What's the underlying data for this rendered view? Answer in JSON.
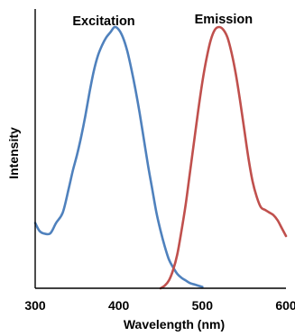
{
  "chart_data": {
    "type": "line",
    "xlabel": "Wavelength (nm)",
    "ylabel": "Intensity",
    "xlim": [
      300,
      600
    ],
    "ylim": [
      0,
      1
    ],
    "xticks": [
      "300",
      "400",
      "500",
      "600"
    ],
    "grid": false,
    "series": [
      {
        "name": "Excitation",
        "color": "#4f81bd",
        "points": [
          [
            300,
            0.25
          ],
          [
            305,
            0.22
          ],
          [
            310,
            0.21
          ],
          [
            318,
            0.21
          ],
          [
            325,
            0.25
          ],
          [
            333,
            0.29
          ],
          [
            340,
            0.38
          ],
          [
            345,
            0.45
          ],
          [
            350,
            0.51
          ],
          [
            355,
            0.58
          ],
          [
            360,
            0.66
          ],
          [
            365,
            0.75
          ],
          [
            370,
            0.83
          ],
          [
            375,
            0.89
          ],
          [
            380,
            0.93
          ],
          [
            385,
            0.96
          ],
          [
            390,
            0.98
          ],
          [
            395,
            1.0
          ],
          [
            400,
            0.99
          ],
          [
            405,
            0.96
          ],
          [
            410,
            0.91
          ],
          [
            415,
            0.84
          ],
          [
            420,
            0.76
          ],
          [
            425,
            0.67
          ],
          [
            430,
            0.57
          ],
          [
            435,
            0.47
          ],
          [
            440,
            0.38
          ],
          [
            445,
            0.29
          ],
          [
            450,
            0.22
          ],
          [
            455,
            0.16
          ],
          [
            460,
            0.11
          ],
          [
            465,
            0.08
          ],
          [
            470,
            0.055
          ],
          [
            475,
            0.04
          ],
          [
            480,
            0.03
          ],
          [
            485,
            0.02
          ],
          [
            490,
            0.015
          ],
          [
            495,
            0.01
          ],
          [
            500,
            0.005
          ]
        ]
      },
      {
        "name": "Emission",
        "color": "#c0504d",
        "points": [
          [
            450,
            0.0
          ],
          [
            455,
            0.01
          ],
          [
            460,
            0.03
          ],
          [
            465,
            0.07
          ],
          [
            470,
            0.13
          ],
          [
            475,
            0.22
          ],
          [
            480,
            0.32
          ],
          [
            485,
            0.44
          ],
          [
            490,
            0.56
          ],
          [
            495,
            0.68
          ],
          [
            500,
            0.79
          ],
          [
            505,
            0.88
          ],
          [
            510,
            0.95
          ],
          [
            515,
            0.99
          ],
          [
            520,
            1.0
          ],
          [
            525,
            0.99
          ],
          [
            530,
            0.96
          ],
          [
            535,
            0.9
          ],
          [
            540,
            0.82
          ],
          [
            545,
            0.72
          ],
          [
            550,
            0.61
          ],
          [
            555,
            0.5
          ],
          [
            560,
            0.41
          ],
          [
            565,
            0.35
          ],
          [
            570,
            0.31
          ],
          [
            575,
            0.3
          ],
          [
            580,
            0.29
          ],
          [
            585,
            0.28
          ],
          [
            590,
            0.26
          ],
          [
            595,
            0.23
          ],
          [
            600,
            0.2
          ]
        ]
      }
    ]
  }
}
